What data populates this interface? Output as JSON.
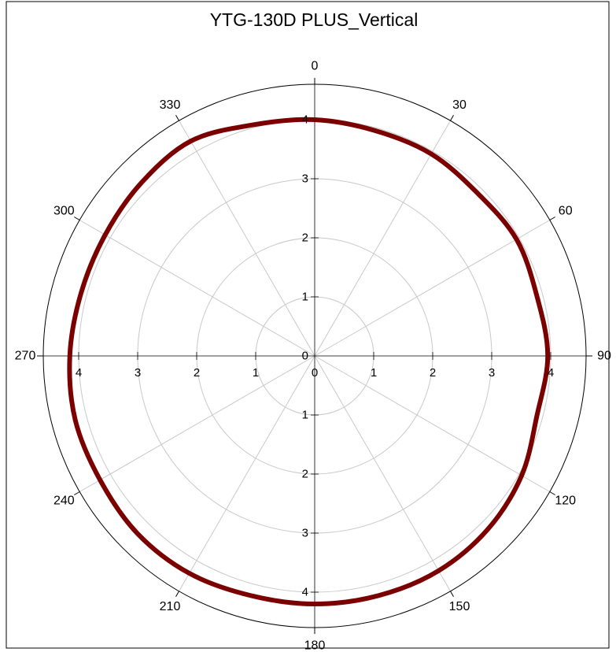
{
  "chart_data": {
    "type": "line",
    "subtype": "polar",
    "title": "YTG-130D PLUS_Vertical",
    "angle_direction": "clockwise",
    "zero_angle_position": "top",
    "angle_labels": [
      "0",
      "30",
      "60",
      "90",
      "120",
      "150",
      "180",
      "210",
      "240",
      "270",
      "300",
      "330"
    ],
    "radial_ticks": [
      0,
      1,
      2,
      3,
      4
    ],
    "radial_range": [
      0,
      4.6
    ],
    "grid": true,
    "legend": "none",
    "series": [
      {
        "angles": [
          0,
          15,
          30,
          45,
          60,
          75,
          90,
          105,
          120,
          135,
          150,
          165,
          180,
          195,
          210,
          225,
          240,
          255,
          270,
          285,
          300,
          315,
          330,
          345,
          360
        ],
        "values": [
          4.0,
          3.95,
          3.95,
          3.9,
          3.95,
          3.9,
          3.95,
          3.9,
          4.05,
          4.15,
          4.2,
          4.2,
          4.2,
          4.2,
          4.25,
          4.25,
          4.2,
          4.2,
          4.15,
          4.1,
          4.1,
          4.15,
          4.2,
          4.05,
          4.0
        ],
        "color": "#7b0000"
      }
    ]
  }
}
